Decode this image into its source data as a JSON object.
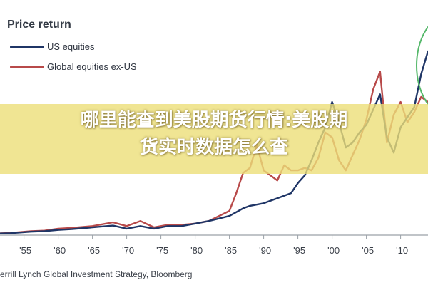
{
  "chart_data": {
    "type": "line",
    "title": "Price return",
    "series": [
      {
        "name": "US equities",
        "color": "#1f3566",
        "points": [
          [
            1950,
            0
          ],
          [
            1953,
            0.2
          ],
          [
            1956,
            0.8
          ],
          [
            1958,
            1.0
          ],
          [
            1960,
            1.5
          ],
          [
            1962,
            1.8
          ],
          [
            1965,
            2.5
          ],
          [
            1968,
            3.2
          ],
          [
            1970,
            2.0
          ],
          [
            1972,
            3.0
          ],
          [
            1974,
            2.0
          ],
          [
            1976,
            3.0
          ],
          [
            1978,
            3.0
          ],
          [
            1980,
            4.0
          ],
          [
            1982,
            5.0
          ],
          [
            1985,
            7.0
          ],
          [
            1987,
            10.0
          ],
          [
            1988,
            11.0
          ],
          [
            1990,
            12.0
          ],
          [
            1992,
            14.0
          ],
          [
            1994,
            16.0
          ],
          [
            1995,
            20.0
          ],
          [
            1996,
            23.0
          ],
          [
            1997,
            29.0
          ],
          [
            1998,
            36.0
          ],
          [
            1999,
            42.0
          ],
          [
            2000,
            52.0
          ],
          [
            2001,
            44.0
          ],
          [
            2002,
            34.0
          ],
          [
            2003,
            36.0
          ],
          [
            2004,
            40.0
          ],
          [
            2005,
            43.0
          ],
          [
            2006,
            49.0
          ],
          [
            2007,
            55.0
          ],
          [
            2008,
            38.0
          ],
          [
            2009,
            32.0
          ],
          [
            2010,
            42.0
          ],
          [
            2011,
            46.0
          ],
          [
            2012,
            50.0
          ],
          [
            2013,
            63.0
          ],
          [
            2014,
            72.0
          ]
        ]
      },
      {
        "name": "Global equities ex-US",
        "color": "#b84a4a",
        "points": [
          [
            1950,
            0
          ],
          [
            1953,
            0.3
          ],
          [
            1956,
            1.0
          ],
          [
            1958,
            1.2
          ],
          [
            1960,
            2.0
          ],
          [
            1962,
            2.3
          ],
          [
            1965,
            3.0
          ],
          [
            1968,
            4.5
          ],
          [
            1970,
            3.0
          ],
          [
            1972,
            5.0
          ],
          [
            1974,
            2.5
          ],
          [
            1976,
            3.5
          ],
          [
            1978,
            3.5
          ],
          [
            1980,
            4.0
          ],
          [
            1982,
            5.0
          ],
          [
            1985,
            9.0
          ],
          [
            1986,
            16.0
          ],
          [
            1987,
            24.0
          ],
          [
            1988,
            26.0
          ],
          [
            1989,
            35.0
          ],
          [
            1990,
            25.0
          ],
          [
            1991,
            23.0
          ],
          [
            1992,
            21.0
          ],
          [
            1993,
            27.0
          ],
          [
            1994,
            25.0
          ],
          [
            1995,
            25.0
          ],
          [
            1996,
            26.0
          ],
          [
            1997,
            25.0
          ],
          [
            1998,
            30.0
          ],
          [
            1999,
            40.0
          ],
          [
            2000,
            38.0
          ],
          [
            2001,
            29.0
          ],
          [
            2002,
            25.0
          ],
          [
            2003,
            31.0
          ],
          [
            2004,
            37.0
          ],
          [
            2005,
            45.0
          ],
          [
            2006,
            57.0
          ],
          [
            2007,
            64.0
          ],
          [
            2008,
            36.0
          ],
          [
            2009,
            47.0
          ],
          [
            2010,
            52.0
          ],
          [
            2011,
            44.0
          ],
          [
            2012,
            48.0
          ],
          [
            2013,
            54.0
          ],
          [
            2014,
            52.0
          ]
        ]
      }
    ],
    "xticks": [
      "'55",
      "'60",
      "'65",
      "'70",
      "'75",
      "'80",
      "'85",
      "'90",
      "'95",
      "'00",
      "'05",
      "'10"
    ],
    "xtick_years": [
      1955,
      1960,
      1965,
      1970,
      1975,
      1980,
      1985,
      1990,
      1995,
      2000,
      2005,
      2010
    ],
    "xlim": [
      1951.5,
      2014
    ],
    "ylim": [
      0,
      90
    ],
    "xlabel": "",
    "ylabel": "",
    "legend_position": "top-left",
    "grid": false,
    "annotation": {
      "shape": "ellipse",
      "color": "#55b86a"
    }
  },
  "source": "errill Lynch Global Investment Strategy, Bloomberg",
  "overlay": {
    "line1": "哪里能查到美股期货行情:美股期",
    "line2": "货实时数据怎么查"
  }
}
